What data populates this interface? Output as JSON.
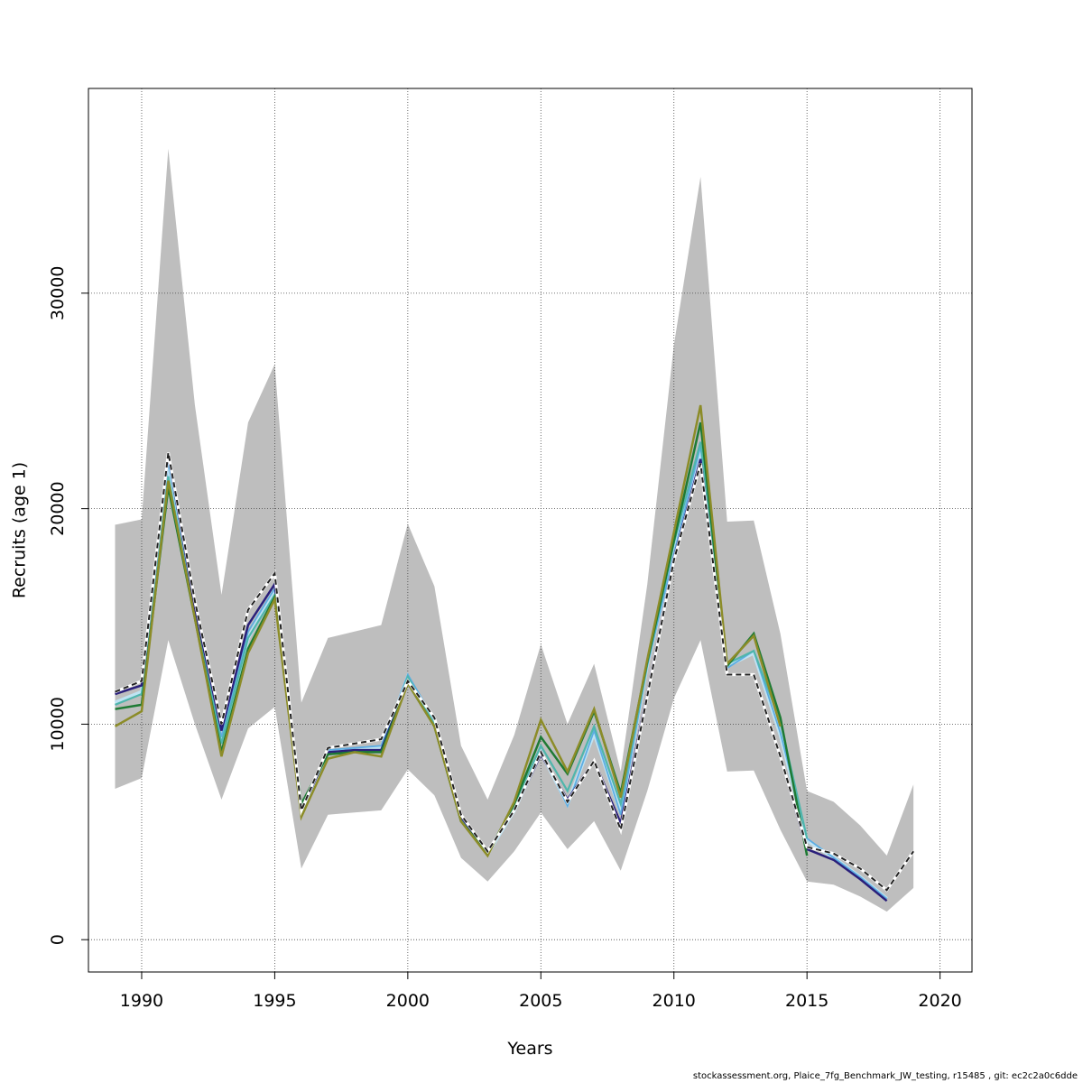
{
  "chart_data": {
    "type": "line",
    "title": "",
    "xlabel": "Years",
    "ylabel": "Recruits (age 1)",
    "xlim": [
      1988,
      2021.2
    ],
    "ylim": [
      -1500,
      39500
    ],
    "xticks": [
      1990,
      1995,
      2000,
      2005,
      2010,
      2015,
      2020
    ],
    "yticks": [
      0,
      10000,
      20000,
      30000
    ],
    "grid": true,
    "band": {
      "color": "#bebebe",
      "x": [
        1989,
        1990,
        1991,
        1992,
        1993,
        1994,
        1995,
        1996,
        1997,
        1998,
        1999,
        2000,
        2001,
        2002,
        2003,
        2004,
        2005,
        2006,
        2007,
        2008,
        2009,
        2010,
        2011,
        2012,
        2013,
        2014,
        2015,
        2016,
        2017,
        2018,
        2019
      ],
      "upper": [
        19250,
        19500,
        36700,
        24800,
        16000,
        24000,
        26700,
        11000,
        14000,
        14300,
        14600,
        19300,
        16400,
        9000,
        6500,
        9500,
        13700,
        10000,
        12800,
        7800,
        16500,
        27600,
        35400,
        19400,
        19450,
        14200,
        6900,
        6400,
        5300,
        3900,
        7200
      ],
      "lower": [
        7000,
        7500,
        13900,
        10000,
        6500,
        9800,
        10800,
        3300,
        5800,
        5900,
        6000,
        7900,
        6700,
        3800,
        2700,
        4100,
        5900,
        4200,
        5500,
        3200,
        6900,
        11200,
        13900,
        7800,
        7850,
        5100,
        2700,
        2550,
        2000,
        1300,
        2400
      ]
    },
    "series": [
      {
        "color": "#bfe3f2",
        "width": 4,
        "dash": "none",
        "x": [
          1989,
          1990,
          1991,
          1992,
          1993,
          1994,
          1995,
          1996,
          1997,
          1998,
          1999,
          2000,
          2001,
          2002,
          2003,
          2004,
          2005,
          2006,
          2007,
          2008,
          2009,
          2010,
          2011,
          2012,
          2013,
          2014,
          2015,
          2016,
          2017,
          2018
        ],
        "y": [
          11000,
          11500,
          22000,
          15200,
          9200,
          14000,
          16200,
          6000,
          8700,
          8800,
          8900,
          12200,
          10100,
          5600,
          4000,
          6000,
          8700,
          6300,
          9600,
          5900,
          12800,
          18000,
          22800,
          12700,
          13300,
          9500,
          4600,
          3800,
          2900,
          1900
        ]
      },
      {
        "color": "#5dade2",
        "width": 1.8,
        "dash": "none",
        "x": [
          1989,
          1990,
          1991,
          1992,
          1993,
          1994,
          1995,
          1996,
          1997,
          1998,
          1999,
          2000,
          2001,
          2002,
          2003,
          2004,
          2005,
          2006,
          2007,
          2008,
          2009,
          2010,
          2011,
          2012,
          2013,
          2014,
          2015,
          2016,
          2017,
          2018
        ],
        "y": [
          10900,
          11400,
          22200,
          15300,
          9400,
          14300,
          16300,
          6100,
          8800,
          8900,
          9000,
          12300,
          10200,
          5700,
          4100,
          6100,
          8800,
          6200,
          9700,
          5800,
          12700,
          17900,
          22900,
          12600,
          13400,
          9600,
          4700,
          3800,
          2900,
          1900
        ]
      },
      {
        "color": "#4fb6ac",
        "width": 2.2,
        "dash": "none",
        "x": [
          1989,
          1990,
          1991,
          1992,
          1993,
          1994,
          1995,
          1996,
          1997,
          1998,
          1999,
          2000,
          2001,
          2002,
          2003,
          2004,
          2005,
          2006,
          2007,
          2008,
          2009,
          2010,
          2011,
          2012,
          2013,
          2014,
          2015
        ],
        "y": [
          10900,
          11400,
          21500,
          15000,
          9100,
          14000,
          16000,
          6200,
          8600,
          8700,
          8700,
          12200,
          10000,
          5600,
          4000,
          6200,
          9000,
          6900,
          9900,
          6300,
          12800,
          18400,
          23100,
          12800,
          13400,
          10100,
          4700
        ]
      },
      {
        "color": "#2a1f7a",
        "width": 2.5,
        "dash": "none",
        "x": [
          1989,
          1990,
          1991,
          1992,
          1993,
          1994,
          1995,
          1996,
          1997,
          1998,
          1999,
          2000,
          2001,
          2002,
          2003,
          2004,
          2005,
          2006,
          2007,
          2008,
          2009,
          2010,
          2011,
          2012,
          2013,
          2014,
          2015,
          2016,
          2017,
          2018
        ],
        "y": [
          11400,
          11800,
          22500,
          15400,
          9700,
          14600,
          16500,
          6000,
          8700,
          8800,
          8800,
          12000,
          10300,
          5700,
          4100,
          6000,
          8600,
          6500,
          8300,
          5400,
          11400,
          17700,
          22300,
          12300,
          12300,
          8500,
          4200,
          3700,
          2800,
          1800
        ]
      },
      {
        "color": "#1e7a34",
        "width": 2.5,
        "dash": "none",
        "x": [
          1989,
          1990,
          1991,
          1992,
          1993,
          1994,
          1995,
          1996,
          1997,
          1998,
          1999,
          2000,
          2001,
          2002,
          2003,
          2004,
          2005,
          2006,
          2007,
          2008,
          2009,
          2010,
          2011,
          2012,
          2013,
          2014,
          2015
        ],
        "y": [
          10700,
          10900,
          21000,
          14900,
          8700,
          13500,
          15900,
          6300,
          8600,
          8700,
          8700,
          11900,
          9900,
          5500,
          4000,
          6300,
          9400,
          7700,
          10600,
          6800,
          12900,
          18500,
          24000,
          12700,
          14200,
          10300,
          3900
        ]
      },
      {
        "color": "#8c8c28",
        "width": 2.5,
        "dash": "none",
        "x": [
          1989,
          1990,
          1991,
          1992,
          1993,
          1994,
          1995,
          1996,
          1997,
          1998,
          1999,
          2000,
          2001,
          2002,
          2003,
          2004,
          2005,
          2006,
          2007,
          2008,
          2009,
          2010,
          2011,
          2012,
          2013,
          2014
        ],
        "y": [
          9900,
          10600,
          21300,
          14900,
          8500,
          13300,
          15800,
          5700,
          8400,
          8700,
          8500,
          11900,
          9900,
          5500,
          3900,
          6400,
          10200,
          7800,
          10700,
          6600,
          13000,
          18900,
          24800,
          12800,
          14100,
          9900
        ]
      },
      {
        "color": "#ffffff",
        "width": 3.2,
        "dash": "none",
        "x": [
          1989,
          1990,
          1991,
          1992,
          1993,
          1994,
          1995,
          1996,
          1997,
          1998,
          1999,
          2000,
          2001,
          2002,
          2003,
          2004,
          2005,
          2006,
          2007,
          2008,
          2009,
          2010,
          2011,
          2012,
          2013,
          2014,
          2015,
          2016,
          2017,
          2018,
          2019
        ],
        "y": [
          11500,
          12000,
          22600,
          15700,
          10000,
          15300,
          17000,
          6000,
          8900,
          9100,
          9300,
          12000,
          10300,
          5800,
          4100,
          6000,
          8700,
          6400,
          8300,
          5100,
          11300,
          17600,
          22100,
          12300,
          12300,
          8500,
          4300,
          4000,
          3300,
          2300,
          4100
        ]
      },
      {
        "color": "#222222",
        "width": 2,
        "dash": "6,4",
        "x": [
          1989,
          1990,
          1991,
          1992,
          1993,
          1994,
          1995,
          1996,
          1997,
          1998,
          1999,
          2000,
          2001,
          2002,
          2003,
          2004,
          2005,
          2006,
          2007,
          2008,
          2009,
          2010,
          2011,
          2012,
          2013,
          2014,
          2015,
          2016,
          2017,
          2018,
          2019
        ],
        "y": [
          11500,
          12000,
          22600,
          15700,
          10000,
          15300,
          17000,
          6000,
          8900,
          9100,
          9300,
          12000,
          10300,
          5800,
          4100,
          6000,
          8700,
          6400,
          8300,
          5100,
          11300,
          17600,
          22100,
          12300,
          12300,
          8500,
          4300,
          4000,
          3300,
          2300,
          4100
        ]
      }
    ]
  },
  "footer": {
    "text": "stockassessment.org, Plaice_7fg_Benchmark_JW_testing, r15485 , git: ec2c2a0c6dde"
  }
}
